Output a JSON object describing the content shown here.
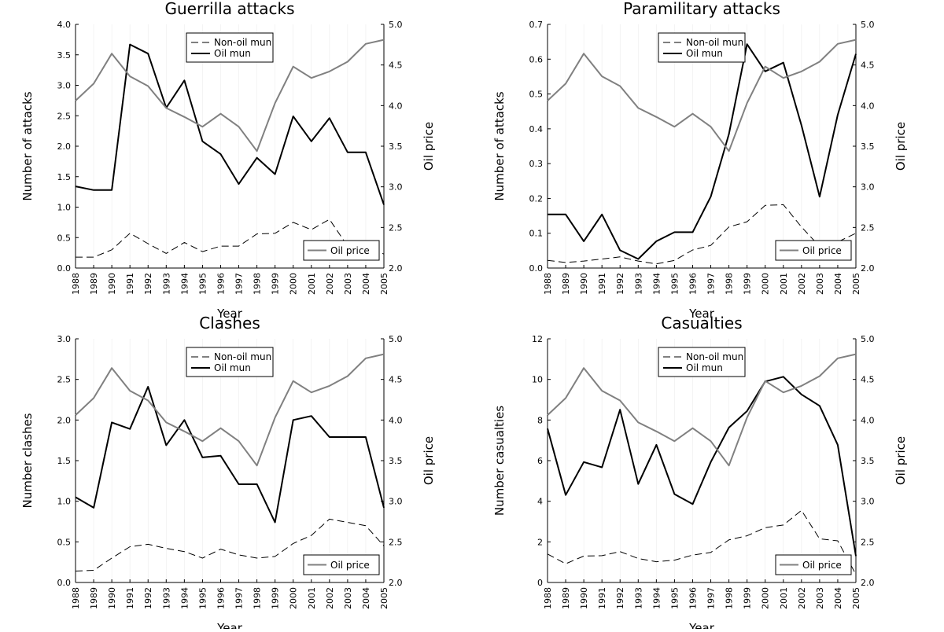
{
  "figure": {
    "years": [
      "1988",
      "1989",
      "1990",
      "1991",
      "1992",
      "1993",
      "1994",
      "1995",
      "1996",
      "1997",
      "1998",
      "1999",
      "2000",
      "2001",
      "2002",
      "2003",
      "2004",
      "2005"
    ],
    "legend_labels": {
      "non_oil": "Non-oil mun",
      "oil": "Oil mun",
      "price": "Oil price"
    },
    "right_axis": {
      "label": "Oil price",
      "ylim": [
        2.0,
        5.0
      ],
      "ticks": [
        "2.0",
        "2.5",
        "3.0",
        "3.5",
        "4.0",
        "4.5",
        "5.0"
      ]
    },
    "colors": {
      "oil": "#000000",
      "non_oil": "#000000",
      "price": "#808080"
    }
  },
  "chart_data": [
    {
      "type": "line",
      "title": "Guerrilla attacks",
      "xlabel": "Year",
      "ylabel": "Number of attacks",
      "ylim": [
        0,
        4.0
      ],
      "yticks": [
        "0.0",
        "0.5",
        "1.0",
        "1.5",
        "2.0",
        "2.5",
        "3.0",
        "3.5",
        "4.0"
      ],
      "legend_placement": "top-center",
      "price_legend_placement": "bottom-right",
      "series": [
        {
          "name": "Non-oil mun",
          "values": [
            0.18,
            0.18,
            0.3,
            0.57,
            0.4,
            0.24,
            0.42,
            0.27,
            0.36,
            0.36,
            0.56,
            0.57,
            0.75,
            0.63,
            0.8,
            0.36,
            0.35,
            0.23
          ]
        },
        {
          "name": "Oil mun",
          "values": [
            1.34,
            1.28,
            1.28,
            3.67,
            3.52,
            2.63,
            3.08,
            2.08,
            1.87,
            1.38,
            1.81,
            1.54,
            2.49,
            2.08,
            2.46,
            1.9,
            1.9,
            1.04
          ]
        },
        {
          "name": "Oil price",
          "axis": "right",
          "values": [
            4.06,
            4.27,
            4.64,
            4.36,
            4.24,
            3.97,
            3.86,
            3.74,
            3.9,
            3.74,
            3.44,
            4.03,
            4.48,
            4.34,
            4.42,
            4.54,
            4.76,
            4.81
          ]
        }
      ]
    },
    {
      "type": "line",
      "title": "Paramilitary attacks",
      "xlabel": "Year",
      "ylabel": "Number of attacks",
      "ylim": [
        0,
        0.7
      ],
      "yticks": [
        "0.0",
        "0.1",
        "0.2",
        "0.3",
        "0.4",
        "0.5",
        "0.6",
        "0.7"
      ],
      "legend_placement": "top-center",
      "price_legend_placement": "bottom-right",
      "series": [
        {
          "name": "Non-oil mun",
          "values": [
            0.022,
            0.016,
            0.02,
            0.026,
            0.032,
            0.02,
            0.012,
            0.022,
            0.052,
            0.065,
            0.118,
            0.133,
            0.18,
            0.182,
            0.118,
            0.062,
            0.075,
            0.1
          ]
        },
        {
          "name": "Oil mun",
          "values": [
            0.154,
            0.154,
            0.077,
            0.154,
            0.051,
            0.026,
            0.077,
            0.103,
            0.103,
            0.205,
            0.385,
            0.643,
            0.565,
            0.59,
            0.41,
            0.205,
            0.44,
            0.615
          ]
        },
        {
          "name": "Oil price",
          "axis": "right",
          "values": [
            4.06,
            4.27,
            4.64,
            4.36,
            4.24,
            3.97,
            3.86,
            3.74,
            3.9,
            3.74,
            3.44,
            4.03,
            4.48,
            4.34,
            4.42,
            4.54,
            4.76,
            4.81
          ]
        }
      ]
    },
    {
      "type": "line",
      "title": "Clashes",
      "xlabel": "Year",
      "ylabel": "Number clashes",
      "ylim": [
        0,
        3.0
      ],
      "yticks": [
        "0.0",
        "0.5",
        "1.0",
        "1.5",
        "2.0",
        "2.5",
        "3.0"
      ],
      "legend_placement": "top-center",
      "price_legend_placement": "bottom-right",
      "series": [
        {
          "name": "Non-oil mun",
          "values": [
            0.14,
            0.15,
            0.3,
            0.44,
            0.47,
            0.42,
            0.38,
            0.3,
            0.41,
            0.34,
            0.3,
            0.32,
            0.48,
            0.58,
            0.78,
            0.74,
            0.7,
            0.45
          ]
        },
        {
          "name": "Oil mun",
          "values": [
            1.05,
            0.92,
            1.97,
            1.89,
            2.41,
            1.69,
            2.0,
            1.54,
            1.56,
            1.21,
            1.21,
            0.74,
            2.0,
            2.05,
            1.79,
            1.79,
            1.79,
            0.92
          ]
        },
        {
          "name": "Oil price",
          "axis": "right",
          "values": [
            4.06,
            4.27,
            4.64,
            4.36,
            4.24,
            3.97,
            3.86,
            3.74,
            3.9,
            3.74,
            3.44,
            4.03,
            4.48,
            4.34,
            4.42,
            4.54,
            4.76,
            4.81
          ]
        }
      ]
    },
    {
      "type": "line",
      "title": "Casualties",
      "xlabel": "Year",
      "ylabel": "Number casualties",
      "ylim": [
        0,
        12
      ],
      "yticks": [
        "0",
        "2",
        "4",
        "6",
        "8",
        "10",
        "12"
      ],
      "legend_placement": "top-center",
      "price_legend_placement": "bottom-right",
      "series": [
        {
          "name": "Non-oil mun",
          "values": [
            1.4,
            0.92,
            1.3,
            1.32,
            1.52,
            1.18,
            1.02,
            1.1,
            1.35,
            1.48,
            2.1,
            2.3,
            2.7,
            2.83,
            3.55,
            2.15,
            2.05,
            0.4
          ]
        },
        {
          "name": "Oil mun",
          "values": [
            7.58,
            4.31,
            5.93,
            5.67,
            8.51,
            4.85,
            6.78,
            4.35,
            3.86,
            5.93,
            7.63,
            8.44,
            9.9,
            10.13,
            9.26,
            8.7,
            6.78,
            1.3
          ]
        },
        {
          "name": "Oil price",
          "axis": "right",
          "values": [
            4.06,
            4.27,
            4.64,
            4.36,
            4.24,
            3.97,
            3.86,
            3.74,
            3.9,
            3.74,
            3.44,
            4.03,
            4.48,
            4.34,
            4.42,
            4.54,
            4.76,
            4.81
          ]
        }
      ]
    }
  ]
}
